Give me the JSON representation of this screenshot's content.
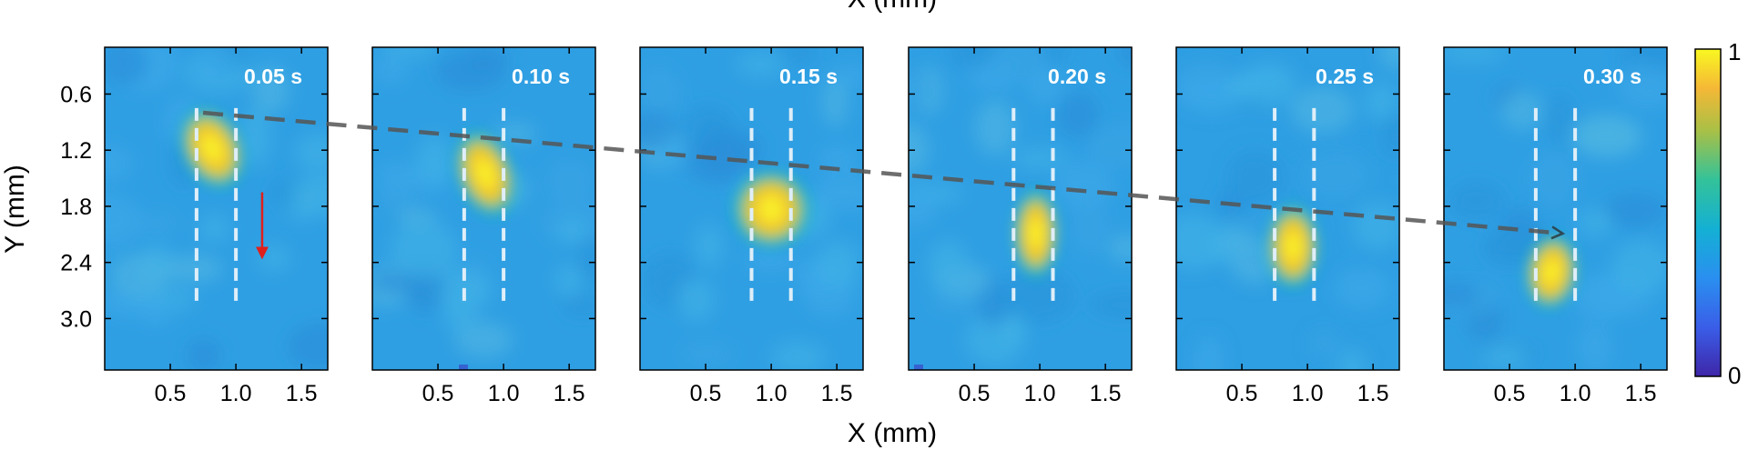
{
  "figure": {
    "top_xlabel": "X (mm)",
    "xlabel": "X (mm)",
    "ylabel": "Y (mm)"
  },
  "chart_data": {
    "type": "heatmap",
    "xlabel": "X (mm)",
    "ylabel": "Y (mm)",
    "xlim": [
      0,
      1.7
    ],
    "ylim": [
      0.1,
      3.55
    ],
    "y_inverted": true,
    "xticks": [
      0.5,
      1.0,
      1.5
    ],
    "xtick_labels": [
      "0.5",
      "1.0",
      "1.5"
    ],
    "yticks": [
      0.6,
      1.2,
      1.8,
      2.4,
      3.0
    ],
    "ytick_labels": [
      "0.6",
      "1.2",
      "1.8",
      "2.4",
      "3.0"
    ],
    "grid": false,
    "colorbar": {
      "min": 0,
      "max": 1,
      "labels": [
        "0",
        "1"
      ],
      "colormap": "parula"
    },
    "colors": {
      "background": "#2f9fe3",
      "spot_core": "#f8ee2a",
      "spot_edge": "#18b9b0",
      "arrow_trend": "#555555",
      "arrow_down": "#e0201b",
      "guide_lines": "#dfeef8"
    },
    "panels": [
      {
        "time_label": "0.05 s",
        "spot": {
          "x": 0.82,
          "y": 1.18,
          "rx": 0.17,
          "ry": 0.36,
          "angle": -25
        },
        "guides_x": [
          0.7,
          1.0
        ],
        "guides_y": [
          0.75,
          2.85
        ],
        "down_arrow": {
          "x": 1.2,
          "y_start": 1.65,
          "y_end": 2.3
        }
      },
      {
        "time_label": "0.10 s",
        "spot": {
          "x": 0.86,
          "y": 1.45,
          "rx": 0.16,
          "ry": 0.38,
          "angle": -20
        },
        "guides_x": [
          0.7,
          1.0
        ],
        "guides_y": [
          0.75,
          2.85
        ]
      },
      {
        "time_label": "0.15 s",
        "spot": {
          "x": 1.0,
          "y": 1.83,
          "rx": 0.22,
          "ry": 0.33,
          "angle": -5
        },
        "guides_x": [
          0.85,
          1.15
        ],
        "guides_y": [
          0.75,
          2.85
        ]
      },
      {
        "time_label": "0.20 s",
        "spot": {
          "x": 0.97,
          "y": 2.09,
          "rx": 0.13,
          "ry": 0.38,
          "angle": 0
        },
        "guides_x": [
          0.8,
          1.1
        ],
        "guides_y": [
          0.75,
          2.85
        ]
      },
      {
        "time_label": "0.25 s",
        "spot": {
          "x": 0.89,
          "y": 2.23,
          "rx": 0.15,
          "ry": 0.36,
          "angle": 0
        },
        "guides_x": [
          0.75,
          1.05
        ],
        "guides_y": [
          0.75,
          2.85
        ]
      },
      {
        "time_label": "0.30 s",
        "spot": {
          "x": 0.82,
          "y": 2.5,
          "rx": 0.15,
          "ry": 0.32,
          "angle": 8
        },
        "guides_x": [
          0.7,
          1.0
        ],
        "guides_y": [
          0.75,
          2.85
        ]
      }
    ],
    "trajectory": {
      "start": {
        "panel": 0,
        "x": 0.75,
        "y": 0.8
      },
      "end": {
        "panel": 5,
        "x": 0.9,
        "y": 2.09
      }
    }
  }
}
